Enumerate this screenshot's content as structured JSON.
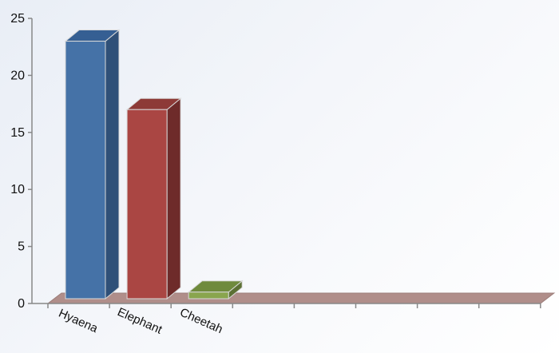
{
  "chart_data": {
    "type": "bar",
    "title": "",
    "xlabel": "",
    "ylabel": "",
    "categories": [
      "Hyaena",
      "Elephant",
      "Cheetah"
    ],
    "values": [
      23,
      17,
      1
    ],
    "ylim": [
      0,
      25
    ],
    "yticks": [
      "0",
      "5",
      "10",
      "15",
      "20",
      "25"
    ],
    "empty_category_slots": 5,
    "style": "3d-column",
    "grid": false,
    "legend": "none",
    "colors": {
      "bars": [
        "#4572A7",
        "#AA4643",
        "#89A54E"
      ],
      "bars_side": [
        "#2f5078",
        "#6e2b2a",
        "#5c7034"
      ],
      "bars_top": [
        "#355f93",
        "#8d3a37",
        "#6f8a3d"
      ],
      "floor": "#b08e8a",
      "axis": "#888888"
    }
  }
}
